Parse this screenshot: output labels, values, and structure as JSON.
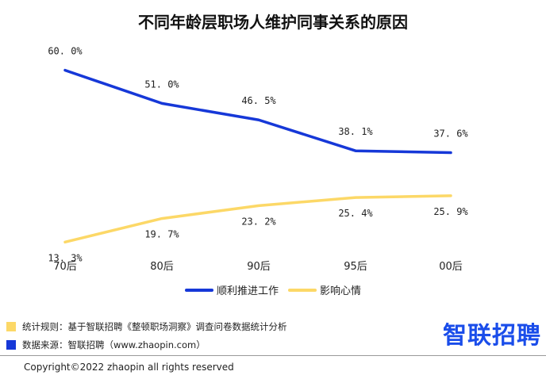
{
  "title": "不同年龄层职场人维护同事关系的原因",
  "chart_data": {
    "type": "line",
    "title": "不同年龄层职场人维护同事关系的原因",
    "x": [
      "70后",
      "80后",
      "90后",
      "95后",
      "00后"
    ],
    "series": [
      {
        "name": "顺利推进工作",
        "values": [
          60.0,
          51.0,
          46.5,
          38.1,
          37.6
        ],
        "labels": [
          "60. 0%",
          "51. 0%",
          "46. 5%",
          "38. 1%",
          "37. 6%"
        ],
        "color": "#1638d8"
      },
      {
        "name": "影响心情",
        "values": [
          13.3,
          19.7,
          23.2,
          25.4,
          25.9
        ],
        "labels": [
          "13. 3%",
          "19. 7%",
          "23. 2%",
          "25. 4%",
          "25. 9%"
        ],
        "color": "#fcd867"
      }
    ],
    "ylim": [
      0,
      70
    ],
    "grid": false,
    "legend": "bottom"
  },
  "notes": {
    "rule": "统计规则：基于智联招聘《整顿职场洞察》调查问卷数据统计分析",
    "source": "数据来源：智联招聘（www.zhaopin.com）",
    "rule_color": "#fcd867",
    "source_color": "#1638d8"
  },
  "brand": "智联招聘",
  "copyright": "Copyright©2022 zhaopin all rights reserved"
}
